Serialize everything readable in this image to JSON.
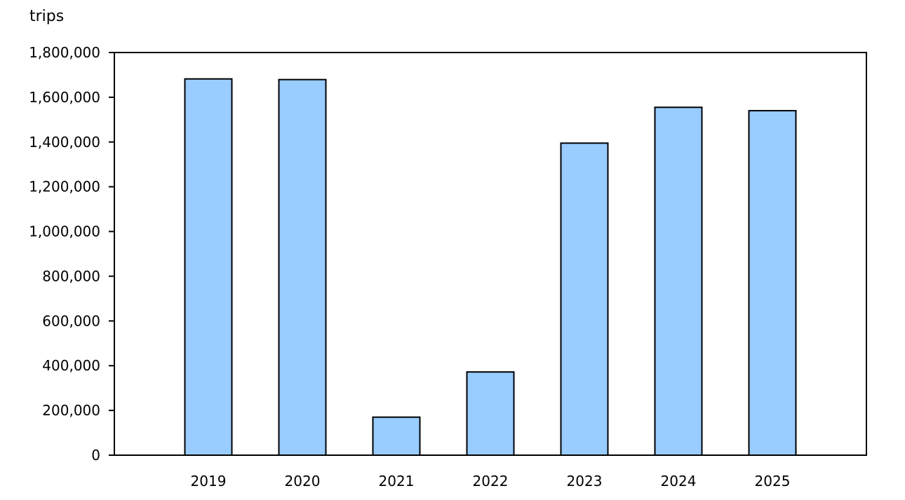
{
  "chart_data": {
    "type": "bar",
    "ylabel": "trips",
    "xlabel": "",
    "categories": [
      "2019",
      "2020",
      "2021",
      "2022",
      "2023",
      "2024",
      "2025"
    ],
    "values": [
      1682000,
      1679000,
      170000,
      372000,
      1395000,
      1555000,
      1540000
    ],
    "ylim": [
      0,
      1800000
    ],
    "yticks": [
      0,
      200000,
      400000,
      600000,
      800000,
      1000000,
      1200000,
      1400000,
      1600000,
      1800000
    ],
    "ytick_labels": [
      "0",
      "200,000",
      "400,000",
      "600,000",
      "800,000",
      "1,000,000",
      "1,200,000",
      "1,400,000",
      "1,600,000",
      "1,800,000"
    ],
    "grid": false,
    "legend": "none",
    "colors": {
      "bar_fill": "#99ccff",
      "bar_stroke": "#000000",
      "axis": "#000000"
    }
  }
}
